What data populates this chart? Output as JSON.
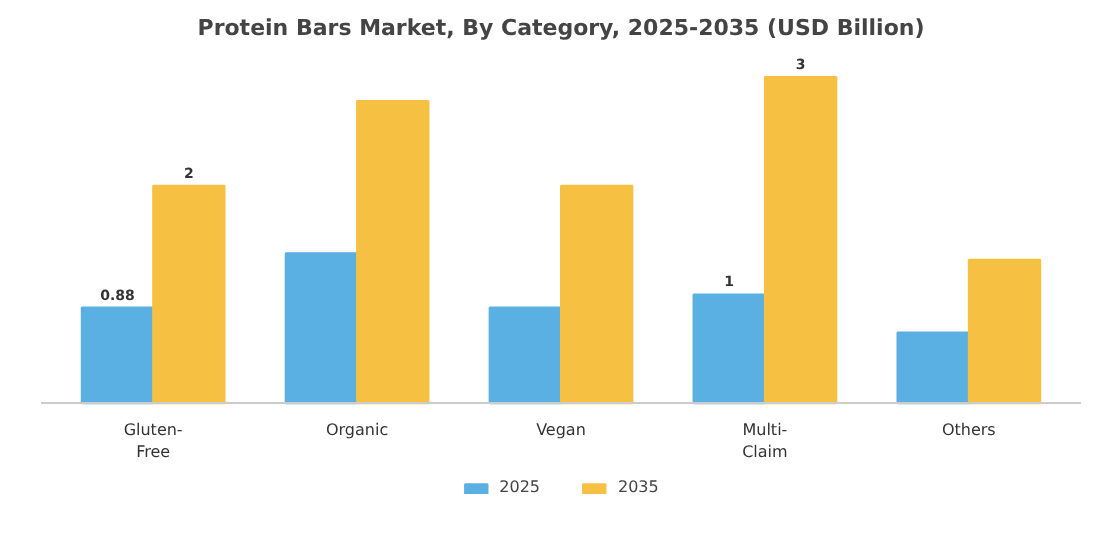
{
  "chart_data": {
    "type": "bar",
    "title": "Protein Bars Market, By Category, 2025-2035 (USD Billion)",
    "categories": [
      "Gluten-\nFree",
      "Organic",
      "Vegan",
      "Multi-\nClaim",
      "Others"
    ],
    "series": [
      {
        "name": "2025",
        "color": "#5aafe3",
        "values": [
          0.88,
          1.38,
          0.88,
          1,
          0.65
        ],
        "value_labels": [
          "0.88",
          null,
          null,
          "1",
          null
        ]
      },
      {
        "name": "2035",
        "color": "#f6c142",
        "values": [
          2,
          2.78,
          2,
          3,
          1.32
        ],
        "value_labels": [
          "2",
          null,
          null,
          "3",
          null
        ]
      }
    ],
    "tick_labels": "x",
    "legend": "bottom"
  }
}
